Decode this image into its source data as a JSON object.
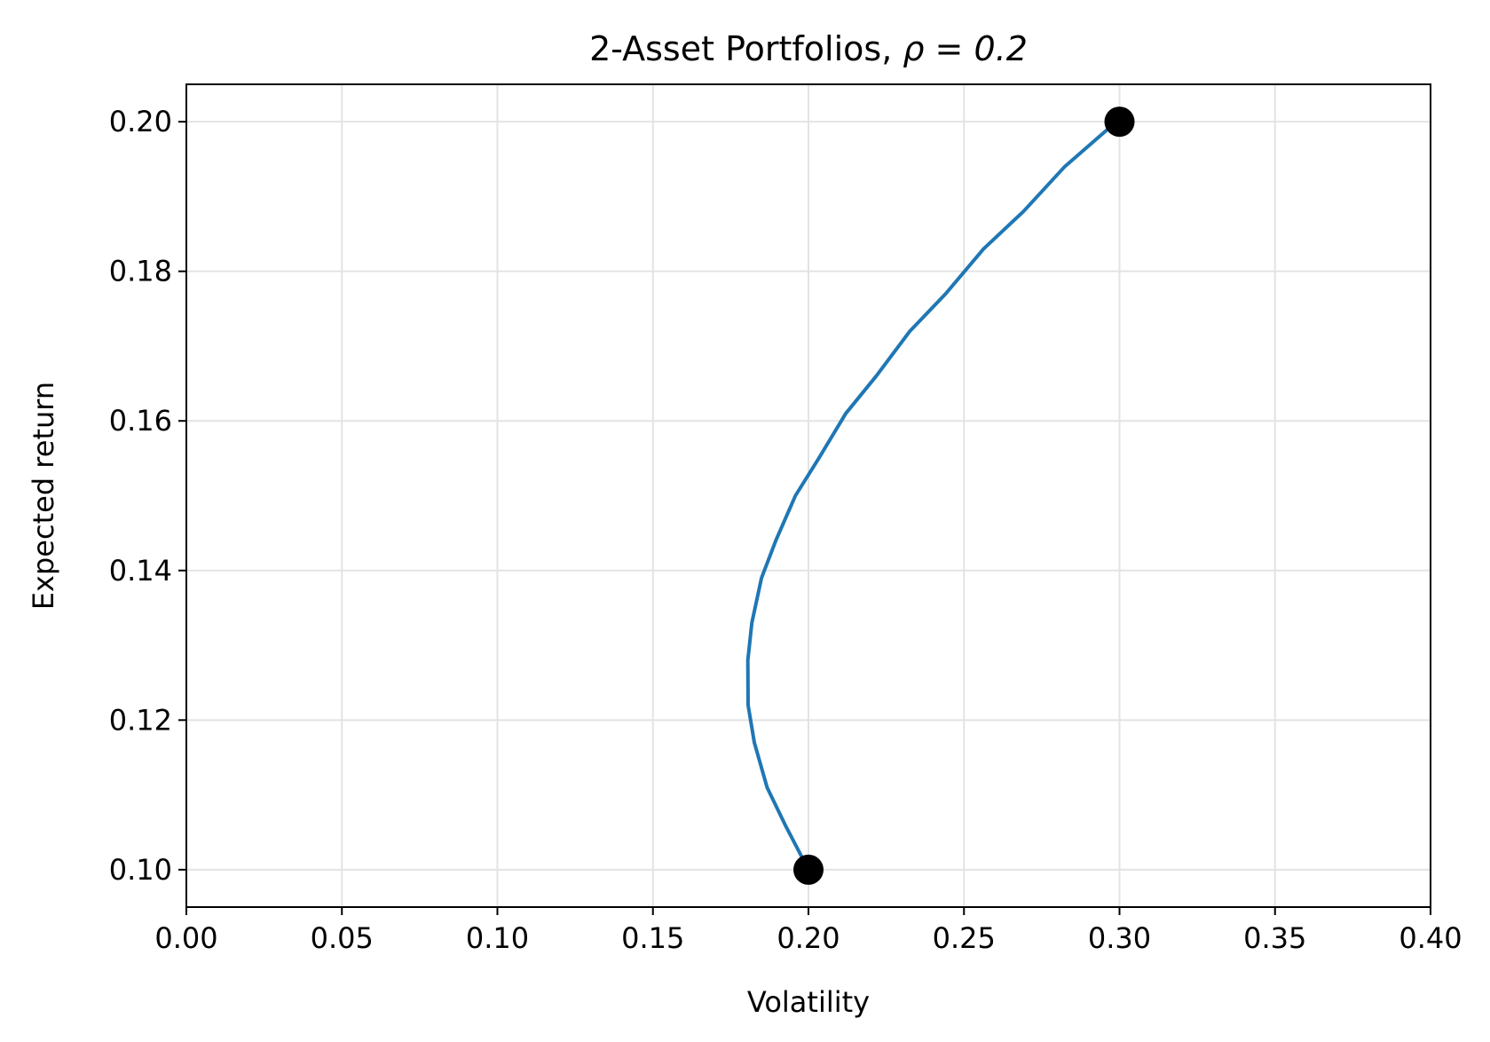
{
  "chart_data": {
    "type": "line",
    "title_text": "2-Asset Portfolios, ",
    "title_math": "ρ = 0.2",
    "xlabel": "Volatility",
    "ylabel": "Expected return",
    "xlim": [
      0.0,
      0.4
    ],
    "ylim": [
      0.095,
      0.205
    ],
    "xticks": [
      0.0,
      0.05,
      0.1,
      0.15,
      0.2,
      0.25,
      0.3,
      0.35,
      0.4
    ],
    "xtick_labels": [
      "0.00",
      "0.05",
      "0.10",
      "0.15",
      "0.20",
      "0.25",
      "0.30",
      "0.35",
      "0.40"
    ],
    "yticks": [
      0.1,
      0.12,
      0.14,
      0.16,
      0.18,
      0.2
    ],
    "ytick_labels": [
      "0.10",
      "0.12",
      "0.14",
      "0.16",
      "0.18",
      "0.20"
    ],
    "grid": true,
    "series": [
      {
        "x": [
          0.2,
          0.1925,
          0.1867,
          0.1826,
          0.1806,
          0.1805,
          0.1818,
          0.1849,
          0.1895,
          0.1958,
          0.2033,
          0.212,
          0.2218,
          0.2326,
          0.2441,
          0.2563,
          0.2691,
          0.2824,
          0.2962,
          0.3
        ],
        "y": [
          0.1,
          0.106,
          0.111,
          0.117,
          0.122,
          0.128,
          0.133,
          0.139,
          0.144,
          0.15,
          0.155,
          0.161,
          0.166,
          0.172,
          0.177,
          0.183,
          0.188,
          0.194,
          0.199,
          0.2
        ],
        "color": "#1f77b4"
      }
    ],
    "points": [
      {
        "x": 0.2,
        "y": 0.1,
        "color": "#000000"
      },
      {
        "x": 0.3,
        "y": 0.2,
        "color": "#000000"
      }
    ]
  }
}
